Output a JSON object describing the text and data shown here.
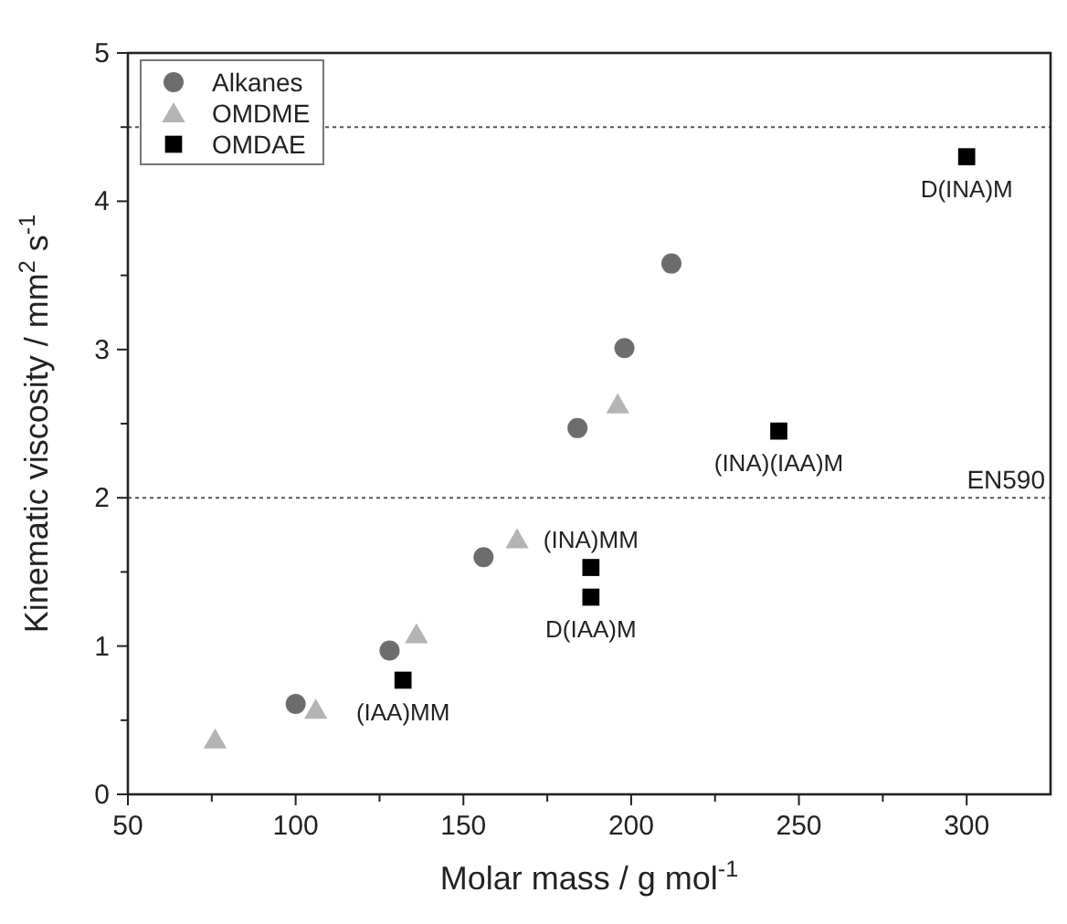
{
  "chart_data": {
    "type": "scatter",
    "xlabel": "Molar mass / g mol$^{-1}$",
    "ylabel": "Kinematic viscosity / mm$^{2}$ s$^{-1}$",
    "xlim": [
      50,
      325
    ],
    "xticks": [
      50,
      {
        "value": 75,
        "label": null
      },
      100,
      {
        "value": 125,
        "label": null
      },
      150,
      {
        "value": 175,
        "label": null
      },
      200,
      {
        "value": 225,
        "label": null
      },
      250,
      {
        "value": 275,
        "label": null
      },
      300
    ],
    "ylim": [
      0,
      5
    ],
    "yticks": [
      0,
      {
        "value": 0.5,
        "label": null
      },
      1,
      {
        "value": 1.5,
        "label": null
      },
      2,
      {
        "value": 2.5,
        "label": null
      },
      3,
      {
        "value": 3.5,
        "label": null
      },
      4,
      {
        "value": 4.5,
        "label": null
      },
      5
    ],
    "grid": false,
    "legend": "top left",
    "series": [
      {
        "name": "Alkanes",
        "color": "#6d6d6d",
        "marker": "circle",
        "x": [
          100,
          128,
          156,
          184,
          198,
          212
        ],
        "values": [
          0.61,
          0.97,
          1.6,
          2.47,
          3.01,
          3.58
        ]
      },
      {
        "name": "OMDME",
        "color": "#b4b4b4",
        "marker": "triangle",
        "x": [
          76,
          106,
          136,
          166,
          196
        ],
        "values": [
          0.37,
          0.57,
          1.08,
          1.72,
          2.63
        ]
      },
      {
        "name": "OMDAE",
        "color": "#000000",
        "marker": "square",
        "x": [
          132,
          188,
          188,
          244,
          300
        ],
        "values": [
          0.77,
          1.53,
          1.33,
          2.45,
          4.3
        ]
      }
    ],
    "ref_lines": [
      {
        "axis": "y",
        "value": 2,
        "label": "EN590",
        "line_style": "dotted",
        "color": "#555555"
      },
      {
        "axis": "y",
        "value": 4.5,
        "line_style": "dotted",
        "color": "#555555"
      }
    ],
    "annotations": [
      {
        "text": "(IAA)MM",
        "x": 132,
        "y": 0.77
      },
      {
        "text": "(INA)MM",
        "x": 188,
        "y": 1.53
      },
      {
        "text": "D(IAA)M",
        "x": 188,
        "y": 1.33
      },
      {
        "text": "(INA)(IAA)M",
        "x": 244,
        "y": 2.45
      },
      {
        "text": "D(INA)M",
        "x": 300,
        "y": 4.3
      }
    ]
  }
}
